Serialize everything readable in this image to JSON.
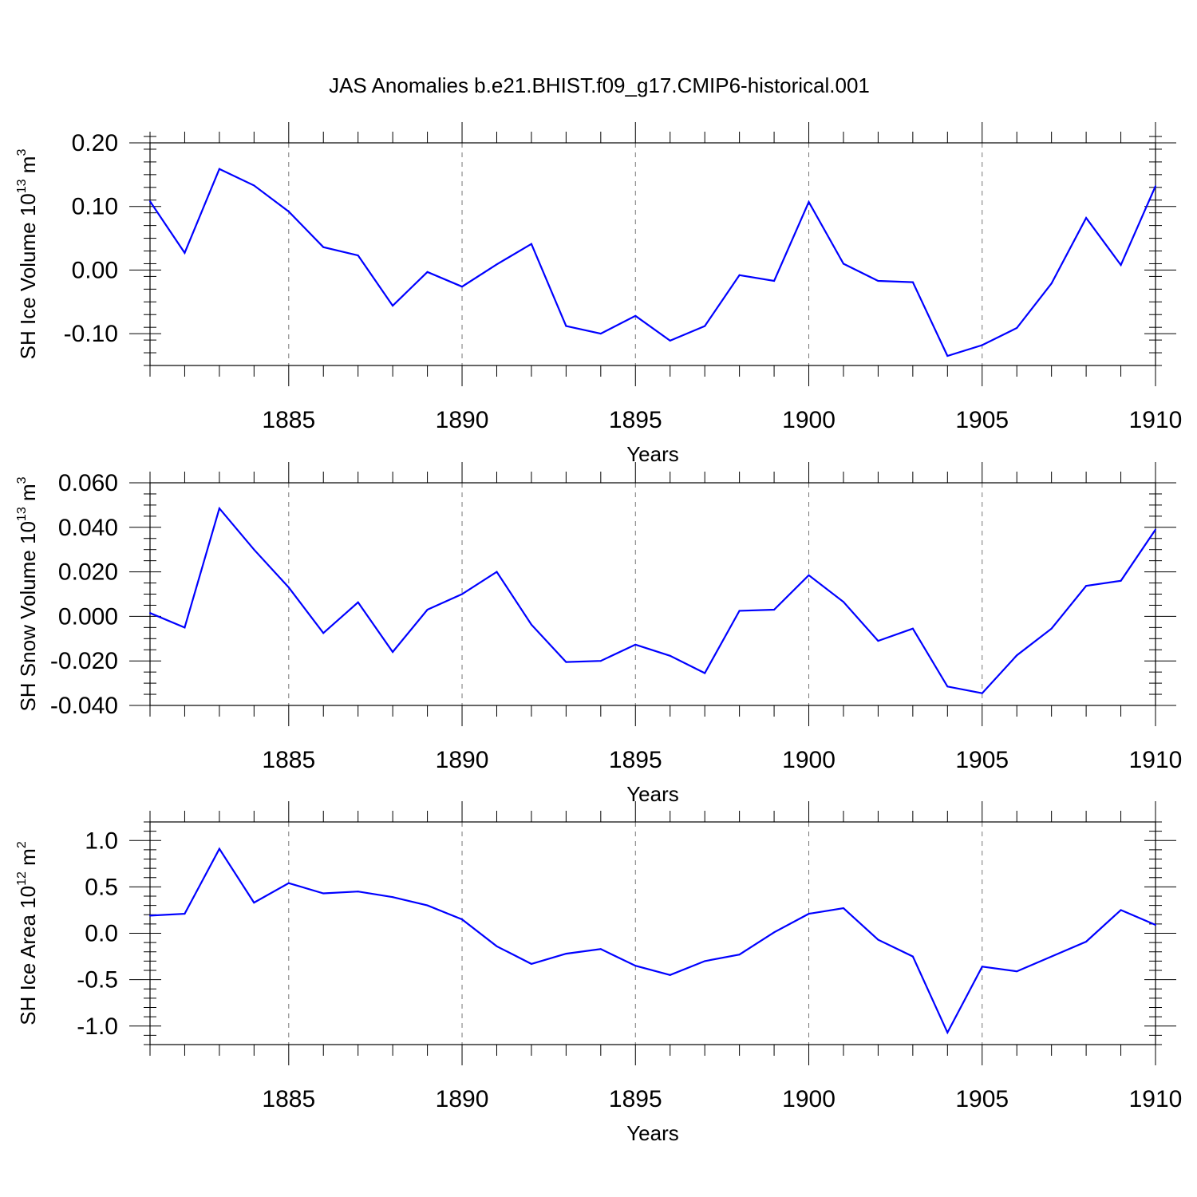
{
  "figure": {
    "title": "JAS Anomalies b.e21.BHIST.f09_g17.CMIP6-historical.001"
  },
  "chart_data": [
    {
      "type": "line",
      "xlabel": "Years",
      "ylabel": "SH Ice Volume 10",
      "ylabel_exp1": "13",
      "ylabel_mid": " m",
      "ylabel_exp2": "3",
      "xlim": [
        1881,
        1910
      ],
      "ylim": [
        -0.15,
        0.2
      ],
      "yticks": [
        -0.1,
        0.0,
        0.1,
        0.2
      ],
      "ytick_labels": [
        "-0.10",
        "0.00",
        "0.10",
        "0.20"
      ],
      "yminor_step": 0.02,
      "xticks": [
        1885,
        1890,
        1895,
        1900,
        1905,
        1910
      ],
      "xtick_labels": [
        "1885",
        "1890",
        "1895",
        "1900",
        "1905",
        "1910"
      ],
      "vgrid": [
        1885,
        1890,
        1895,
        1900,
        1905
      ],
      "color": "#0000ff",
      "x": [
        1881,
        1882,
        1883,
        1884,
        1885,
        1886,
        1887,
        1888,
        1889,
        1890,
        1891,
        1892,
        1893,
        1894,
        1895,
        1896,
        1897,
        1898,
        1899,
        1900,
        1901,
        1902,
        1903,
        1904,
        1905,
        1906,
        1907,
        1908,
        1909,
        1910
      ],
      "y": [
        0.108,
        0.027,
        0.159,
        0.133,
        0.092,
        0.036,
        0.023,
        -0.056,
        -0.003,
        -0.026,
        0.009,
        0.041,
        -0.088,
        -0.1,
        -0.072,
        -0.111,
        -0.088,
        -0.008,
        -0.017,
        0.107,
        0.01,
        -0.017,
        -0.019,
        -0.135,
        -0.118,
        -0.091,
        -0.021,
        0.082,
        0.008,
        0.132
      ]
    },
    {
      "type": "line",
      "xlabel": "Years",
      "ylabel": "SH Snow Volume 10",
      "ylabel_exp1": "13",
      "ylabel_mid": " m",
      "ylabel_exp2": "3",
      "xlim": [
        1881,
        1910
      ],
      "ylim": [
        -0.04,
        0.06
      ],
      "yticks": [
        -0.04,
        -0.02,
        0.0,
        0.02,
        0.04,
        0.06
      ],
      "ytick_labels": [
        "-0.040",
        "-0.020",
        "0.000",
        "0.020",
        "0.040",
        "0.060"
      ],
      "yminor_step": 0.005,
      "xticks": [
        1885,
        1890,
        1895,
        1900,
        1905,
        1910
      ],
      "xtick_labels": [
        "1885",
        "1890",
        "1895",
        "1900",
        "1905",
        "1910"
      ],
      "vgrid": [
        1885,
        1890,
        1895,
        1900,
        1905
      ],
      "color": "#0000ff",
      "x": [
        1881,
        1882,
        1883,
        1884,
        1885,
        1886,
        1887,
        1888,
        1889,
        1890,
        1891,
        1892,
        1893,
        1894,
        1895,
        1896,
        1897,
        1898,
        1899,
        1900,
        1901,
        1902,
        1903,
        1904,
        1905,
        1906,
        1907,
        1908,
        1909,
        1910
      ],
      "y": [
        0.0015,
        -0.005,
        0.0485,
        0.03,
        0.013,
        -0.0075,
        0.0063,
        -0.016,
        0.003,
        0.01,
        0.02,
        -0.0037,
        -0.0205,
        -0.02,
        -0.0127,
        -0.0177,
        -0.0255,
        0.0025,
        0.003,
        0.0185,
        0.0065,
        -0.011,
        -0.0055,
        -0.0315,
        -0.0345,
        -0.0175,
        -0.0055,
        0.0137,
        0.016,
        0.039
      ]
    },
    {
      "type": "line",
      "xlabel": "Years",
      "ylabel": "SH Ice Area 10",
      "ylabel_exp1": "12",
      "ylabel_mid": " m",
      "ylabel_exp2": "2",
      "xlim": [
        1881,
        1910
      ],
      "ylim": [
        -1.2,
        1.2
      ],
      "yticks": [
        -1.0,
        -0.5,
        0.0,
        0.5,
        1.0
      ],
      "ytick_labels": [
        "-1.0",
        "-0.5",
        "0.0",
        "0.5",
        "1.0"
      ],
      "yminor_step": 0.1,
      "xticks": [
        1885,
        1890,
        1895,
        1900,
        1905,
        1910
      ],
      "xtick_labels": [
        "1885",
        "1890",
        "1895",
        "1900",
        "1905",
        "1910"
      ],
      "vgrid": [
        1885,
        1890,
        1895,
        1900,
        1905
      ],
      "color": "#0000ff",
      "x": [
        1881,
        1882,
        1883,
        1884,
        1885,
        1886,
        1887,
        1888,
        1889,
        1890,
        1891,
        1892,
        1893,
        1894,
        1895,
        1896,
        1897,
        1898,
        1899,
        1900,
        1901,
        1902,
        1903,
        1904,
        1905,
        1906,
        1907,
        1908,
        1909,
        1910
      ],
      "y": [
        0.19,
        0.21,
        0.91,
        0.33,
        0.54,
        0.43,
        0.45,
        0.39,
        0.3,
        0.15,
        -0.14,
        -0.33,
        -0.22,
        -0.17,
        -0.35,
        -0.45,
        -0.3,
        -0.23,
        0.01,
        0.21,
        0.27,
        -0.07,
        -0.25,
        -1.07,
        -0.36,
        -0.41,
        -0.25,
        -0.09,
        0.25,
        0.09
      ]
    }
  ]
}
